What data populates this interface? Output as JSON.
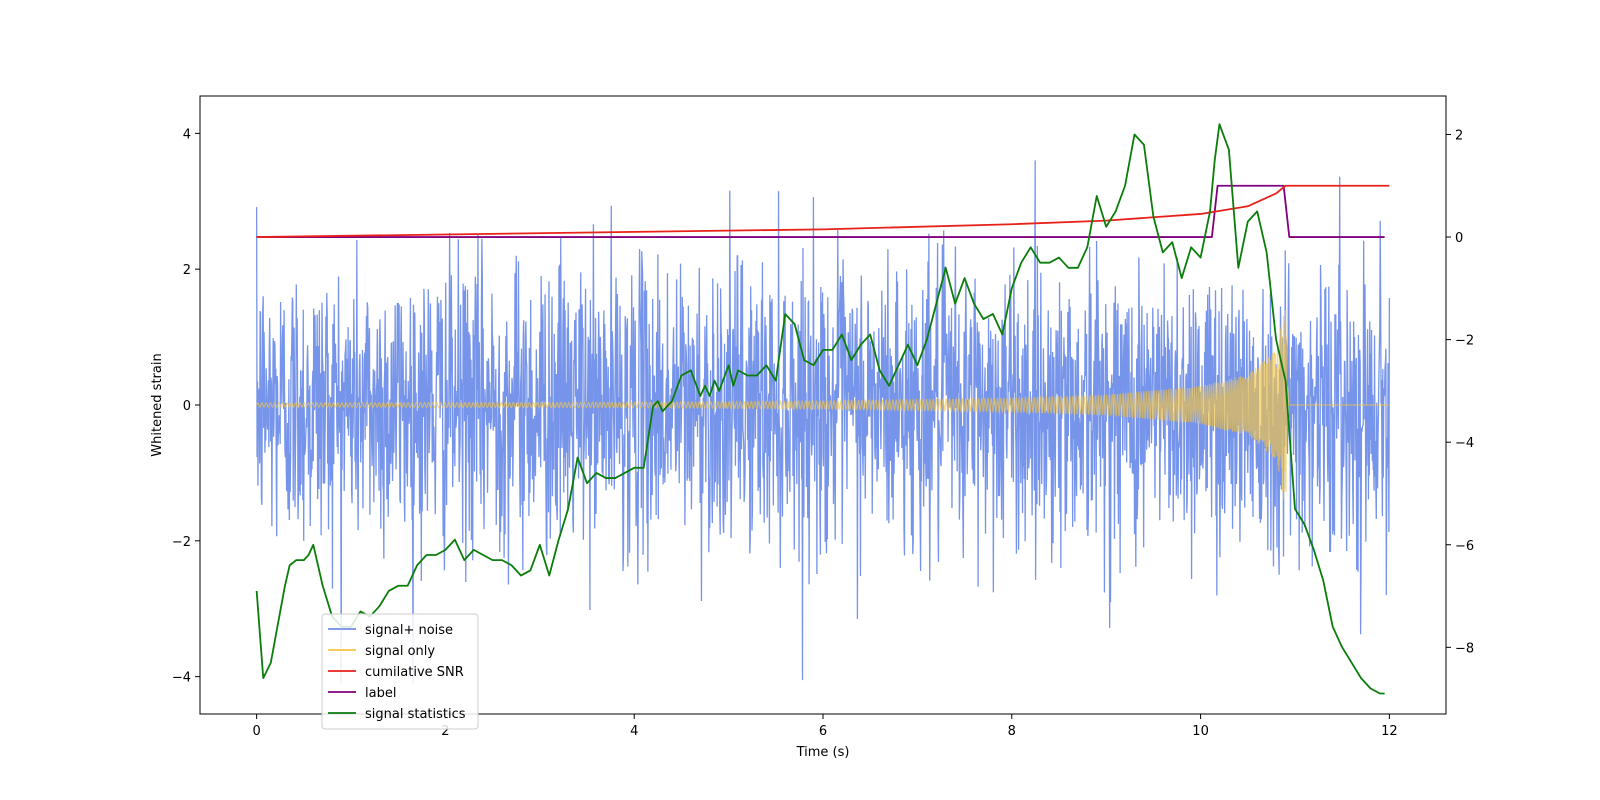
{
  "chart_data": {
    "type": "line",
    "xlabel": "Time (s)",
    "ylabel_left": "Whitened strain",
    "ylabel_right": "",
    "xlim": [
      -0.6,
      12.6
    ],
    "ylim_left": [
      -4.55,
      4.55
    ],
    "ylim_right": [
      -9.3,
      2.75
    ],
    "x_ticks": [
      0,
      2,
      4,
      6,
      8,
      10,
      12
    ],
    "y_ticks_left": [
      -4,
      -2,
      0,
      2,
      4
    ],
    "y_ticks_right": [
      -8,
      -6,
      -4,
      -2,
      0,
      2
    ],
    "grid": false,
    "legend_placement": "lower-left",
    "series": [
      {
        "name": "signal+ noise",
        "color": "#6f8ee8",
        "axis": "left",
        "description_values": {
          "x_range": [
            0,
            12
          ],
          "typical_band": [
            -2.2,
            2.3
          ],
          "extreme_range": [
            -4.1,
            4.1
          ]
        }
      },
      {
        "name": "signal only",
        "color": "#f5c542",
        "axis": "left",
        "envelope": {
          "x": [
            0,
            4,
            6,
            8,
            9,
            10,
            10.5,
            10.8,
            10.9,
            10.93,
            12
          ],
          "amp": [
            0.03,
            0.04,
            0.06,
            0.1,
            0.15,
            0.28,
            0.45,
            0.8,
            1.55,
            0.0,
            0.0
          ]
        }
      },
      {
        "name": "cumilative SNR",
        "color": "#e8211b",
        "axis": "right",
        "x": [
          0,
          2,
          4,
          6,
          8,
          9,
          10,
          10.5,
          10.8,
          10.9,
          12
        ],
        "y": [
          0.0,
          0.05,
          0.1,
          0.15,
          0.25,
          0.32,
          0.45,
          0.6,
          0.85,
          1.0,
          1.0
        ]
      },
      {
        "name": "label",
        "color": "#800080",
        "axis": "right",
        "x": [
          0,
          10.12,
          10.18,
          10.88,
          10.94,
          11.95
        ],
        "y": [
          0,
          0,
          1,
          1,
          0,
          0
        ]
      },
      {
        "name": "signal statistics",
        "color": "#0a7d0a",
        "axis": "right",
        "x": [
          0.0,
          0.07,
          0.15,
          0.25,
          0.3,
          0.35,
          0.42,
          0.5,
          0.55,
          0.6,
          0.7,
          0.8,
          0.9,
          1.0,
          1.1,
          1.2,
          1.3,
          1.4,
          1.5,
          1.6,
          1.7,
          1.8,
          1.9,
          2.0,
          2.1,
          2.2,
          2.3,
          2.4,
          2.5,
          2.6,
          2.7,
          2.8,
          2.9,
          3.0,
          3.1,
          3.2,
          3.3,
          3.4,
          3.5,
          3.6,
          3.7,
          3.8,
          3.9,
          4.0,
          4.1,
          4.2,
          4.25,
          4.3,
          4.35,
          4.4,
          4.5,
          4.6,
          4.7,
          4.75,
          4.8,
          4.85,
          4.9,
          5.0,
          5.05,
          5.1,
          5.2,
          5.3,
          5.4,
          5.5,
          5.6,
          5.7,
          5.8,
          5.9,
          6.0,
          6.1,
          6.2,
          6.3,
          6.4,
          6.5,
          6.6,
          6.7,
          6.8,
          6.9,
          7.0,
          7.1,
          7.2,
          7.3,
          7.4,
          7.5,
          7.6,
          7.7,
          7.8,
          7.9,
          8.0,
          8.1,
          8.2,
          8.3,
          8.4,
          8.5,
          8.6,
          8.7,
          8.8,
          8.9,
          9.0,
          9.1,
          9.2,
          9.3,
          9.4,
          9.5,
          9.6,
          9.7,
          9.8,
          9.9,
          10.0,
          10.1,
          10.15,
          10.2,
          10.3,
          10.4,
          10.5,
          10.6,
          10.7,
          10.8,
          10.9,
          11.0,
          11.1,
          11.2,
          11.3,
          11.4,
          11.5,
          11.6,
          11.7,
          11.8,
          11.9,
          11.95
        ],
        "y": [
          -6.9,
          -8.6,
          -8.3,
          -7.3,
          -6.8,
          -6.4,
          -6.3,
          -6.3,
          -6.2,
          -6.0,
          -6.8,
          -7.4,
          -7.6,
          -7.6,
          -7.3,
          -7.4,
          -7.2,
          -6.9,
          -6.8,
          -6.8,
          -6.4,
          -6.2,
          -6.2,
          -6.1,
          -5.9,
          -6.3,
          -6.1,
          -6.2,
          -6.3,
          -6.3,
          -6.4,
          -6.6,
          -6.5,
          -6.0,
          -6.6,
          -5.9,
          -5.3,
          -4.3,
          -4.8,
          -4.6,
          -4.7,
          -4.7,
          -4.6,
          -4.5,
          -4.5,
          -3.3,
          -3.2,
          -3.4,
          -3.3,
          -3.2,
          -2.7,
          -2.6,
          -3.1,
          -2.9,
          -3.1,
          -2.8,
          -3.0,
          -2.5,
          -2.9,
          -2.6,
          -2.7,
          -2.7,
          -2.5,
          -2.8,
          -1.5,
          -1.7,
          -2.4,
          -2.5,
          -2.2,
          -2.2,
          -1.9,
          -2.4,
          -2.1,
          -1.9,
          -2.6,
          -2.9,
          -2.5,
          -2.1,
          -2.5,
          -2.0,
          -1.3,
          -0.6,
          -1.3,
          -0.8,
          -1.3,
          -1.6,
          -1.5,
          -1.9,
          -1.0,
          -0.5,
          -0.2,
          -0.5,
          -0.5,
          -0.4,
          -0.6,
          -0.6,
          -0.2,
          0.8,
          0.2,
          0.5,
          1.0,
          2.0,
          1.8,
          0.4,
          -0.3,
          -0.1,
          -0.8,
          -0.2,
          -0.4,
          0.5,
          1.5,
          2.2,
          1.7,
          -0.6,
          0.3,
          0.5,
          -0.3,
          -2.0,
          -2.8,
          -5.3,
          -5.6,
          -6.1,
          -6.7,
          -7.6,
          -8.0,
          -8.3,
          -8.6,
          -8.8,
          -8.9,
          -8.9
        ]
      }
    ]
  }
}
